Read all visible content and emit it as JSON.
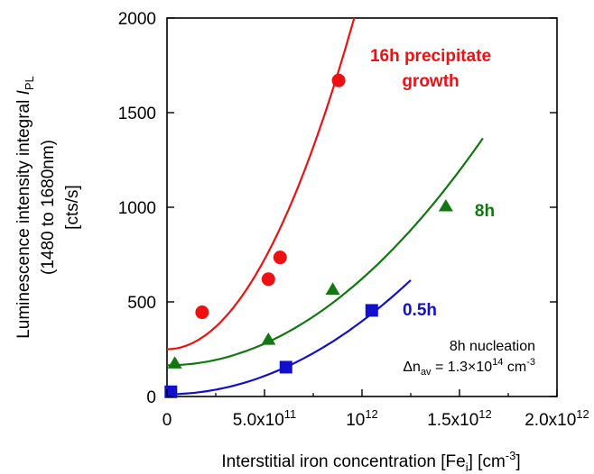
{
  "chart_data": {
    "type": "scatter",
    "title": "",
    "xlim": [
      0,
      2000000000000.0
    ],
    "ylim": [
      0,
      2000
    ],
    "xticks": [
      {
        "value": 0,
        "label": "0"
      },
      {
        "value": 500000000000.0,
        "label": "5.0x10",
        "exp": "11"
      },
      {
        "value": 1000000000000.0,
        "label": "10",
        "exp": "12"
      },
      {
        "value": 1500000000000.0,
        "label": "1.5x10",
        "exp": "12"
      },
      {
        "value": 2000000000000.0,
        "label": "2.0x10",
        "exp": "12"
      }
    ],
    "yticks": [
      {
        "value": 0,
        "label": "0"
      },
      {
        "value": 500,
        "label": "500"
      },
      {
        "value": 1000,
        "label": "1000"
      },
      {
        "value": 1500,
        "label": "1500"
      },
      {
        "value": 2000,
        "label": "2000"
      }
    ],
    "xlabel": {
      "main": "Interstitial iron concentration [Fe",
      "sub": "i",
      "tail": "] [cm",
      "sup": "-3",
      "end": "]"
    },
    "ylabel": {
      "line1_main": "Luminescence intensity integral ",
      "line1_italic": "I",
      "line1_sub": "PL",
      "line2": "(1480 to 1680nm)",
      "line3": "[cts/s]"
    },
    "grid": false,
    "series": [
      {
        "name": "16h precipitate growth",
        "label_lines": [
          "16h precipitate",
          "growth"
        ],
        "color": "#ee1111",
        "marker": "circle",
        "x": [
          180000000000.0,
          520000000000.0,
          580000000000.0,
          880000000000.0
        ],
        "y": [
          445,
          620,
          735,
          1670
        ],
        "fit_x": [
          0,
          960000000000.0
        ],
        "fit_y": [
          250,
          2000
        ]
      },
      {
        "name": "8h",
        "label_lines": [
          "8h"
        ],
        "color": "#117711",
        "marker": "triangle",
        "x": [
          40000000000.0,
          520000000000.0,
          850000000000.0,
          1430000000000.0
        ],
        "y": [
          175,
          300,
          565,
          1005
        ],
        "fit_x": [
          0,
          1620000000000.0
        ],
        "fit_y": [
          165,
          1365
        ]
      },
      {
        "name": "0.5h",
        "label_lines": [
          "0.5h"
        ],
        "color": "#1111cc",
        "marker": "square",
        "x": [
          20000000000.0,
          610000000000.0,
          1050000000000.0
        ],
        "y": [
          25,
          155,
          455
        ],
        "fit_x": [
          0,
          1250000000000.0
        ],
        "fit_y": [
          12,
          615
        ]
      }
    ],
    "annotation": {
      "line1": "8h nucleation",
      "delta": "Δn",
      "sub": "av",
      "mid": " = 1.3×10",
      "sup1": "14",
      "unit": " cm",
      "sup2": "-3"
    }
  }
}
